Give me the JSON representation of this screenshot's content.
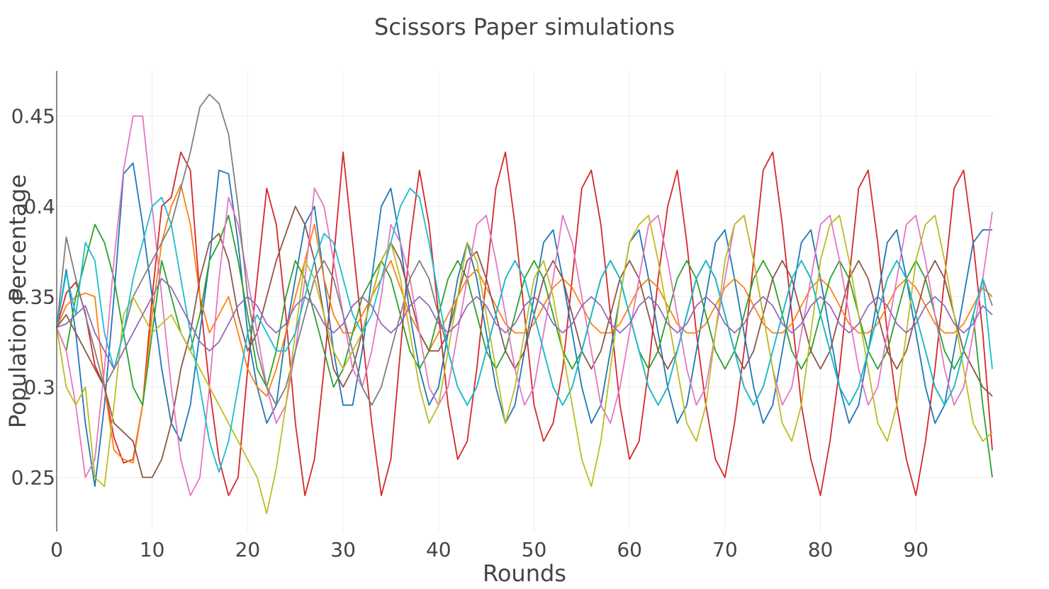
{
  "chart_data": {
    "type": "line",
    "title": "Scissors Paper simulations",
    "xlabel": "Rounds",
    "ylabel": "Population Percentage",
    "xlim": [
      0,
      98
    ],
    "ylim": [
      0.22,
      0.475
    ],
    "x_ticks": [
      0,
      10,
      20,
      30,
      40,
      50,
      60,
      70,
      80,
      90
    ],
    "y_ticks": [
      0.25,
      0.3,
      0.35,
      0.4,
      0.45
    ],
    "y_tick_labels": [
      "0.25",
      "0.3",
      "0.35",
      "0.4",
      "0.45"
    ],
    "grid": true,
    "legend": "none",
    "colors": [
      "#1f77b4",
      "#ff7f0e",
      "#2ca02c",
      "#d62728",
      "#8c564b",
      "#e377c2",
      "#7f7f7f",
      "#bcbd22",
      "#17becf",
      "#9467bd"
    ],
    "series_generation_note": null,
    "series": [
      {
        "color": "#d62728",
        "values": [
          0.333,
          0.352,
          0.358,
          0.341,
          0.312,
          0.3,
          0.272,
          0.258,
          0.26,
          0.29,
          0.35,
          0.4,
          0.405,
          0.43,
          0.42,
          0.35,
          0.3,
          0.26,
          0.24,
          0.25,
          0.31,
          0.36,
          0.41,
          0.39,
          0.34,
          0.28,
          0.24,
          0.26,
          0.31,
          0.37,
          0.43,
          0.38,
          0.33,
          0.28,
          0.24,
          0.26,
          0.32,
          0.38,
          0.42,
          0.39,
          0.34,
          0.29,
          0.26,
          0.27,
          0.31,
          0.36,
          0.41,
          0.43,
          0.39,
          0.34,
          0.29,
          0.27,
          0.28,
          0.31,
          0.36,
          0.41,
          0.42,
          0.39,
          0.34,
          0.29,
          0.26,
          0.27,
          0.31,
          0.36,
          0.4,
          0.42,
          0.38,
          0.33,
          0.29,
          0.26,
          0.25,
          0.28,
          0.32,
          0.37,
          0.42,
          0.43,
          0.39,
          0.34,
          0.29,
          0.26,
          0.24,
          0.27,
          0.31,
          0.36,
          0.41,
          0.42,
          0.38,
          0.33,
          0.29,
          0.26,
          0.24,
          0.27,
          0.31,
          0.36,
          0.41,
          0.42,
          0.38,
          0.33,
          0.265
        ]
      },
      {
        "color": "#1f77b4",
        "values": [
          0.333,
          0.365,
          0.33,
          0.28,
          0.245,
          0.29,
          0.35,
          0.418,
          0.424,
          0.39,
          0.35,
          0.31,
          0.28,
          0.27,
          0.29,
          0.33,
          0.37,
          0.42,
          0.418,
          0.38,
          0.33,
          0.3,
          0.28,
          0.29,
          0.33,
          0.36,
          0.39,
          0.4,
          0.36,
          0.32,
          0.29,
          0.29,
          0.32,
          0.36,
          0.4,
          0.41,
          0.38,
          0.34,
          0.31,
          0.29,
          0.3,
          0.33,
          0.36,
          0.38,
          0.36,
          0.33,
          0.3,
          0.28,
          0.29,
          0.32,
          0.35,
          0.38,
          0.387,
          0.36,
          0.33,
          0.3,
          0.28,
          0.29,
          0.32,
          0.35,
          0.38,
          0.387,
          0.36,
          0.33,
          0.3,
          0.28,
          0.29,
          0.32,
          0.35,
          0.38,
          0.387,
          0.36,
          0.33,
          0.3,
          0.28,
          0.29,
          0.32,
          0.35,
          0.38,
          0.387,
          0.36,
          0.33,
          0.3,
          0.28,
          0.29,
          0.32,
          0.35,
          0.38,
          0.387,
          0.36,
          0.33,
          0.3,
          0.28,
          0.29,
          0.32,
          0.35,
          0.38,
          0.387,
          0.387
        ]
      },
      {
        "color": "#ff7f0e",
        "values": [
          0.333,
          0.345,
          0.35,
          0.352,
          0.35,
          0.3,
          0.265,
          0.26,
          0.258,
          0.29,
          0.34,
          0.38,
          0.4,
          0.412,
          0.39,
          0.35,
          0.33,
          0.34,
          0.35,
          0.33,
          0.31,
          0.3,
          0.295,
          0.31,
          0.33,
          0.35,
          0.37,
          0.39,
          0.36,
          0.34,
          0.33,
          0.33,
          0.34,
          0.35,
          0.36,
          0.37,
          0.355,
          0.34,
          0.33,
          0.32,
          0.33,
          0.34,
          0.35,
          0.36,
          0.365,
          0.355,
          0.345,
          0.335,
          0.33,
          0.33,
          0.335,
          0.345,
          0.355,
          0.36,
          0.355,
          0.345,
          0.335,
          0.33,
          0.33,
          0.335,
          0.345,
          0.355,
          0.36,
          0.355,
          0.345,
          0.335,
          0.33,
          0.33,
          0.335,
          0.345,
          0.355,
          0.36,
          0.355,
          0.345,
          0.335,
          0.33,
          0.33,
          0.335,
          0.345,
          0.355,
          0.36,
          0.355,
          0.345,
          0.335,
          0.33,
          0.33,
          0.335,
          0.345,
          0.355,
          0.36,
          0.355,
          0.345,
          0.335,
          0.33,
          0.33,
          0.335,
          0.345,
          0.355,
          0.35
        ]
      },
      {
        "color": "#2ca02c",
        "values": [
          0.333,
          0.32,
          0.35,
          0.37,
          0.39,
          0.38,
          0.36,
          0.33,
          0.3,
          0.29,
          0.33,
          0.37,
          0.35,
          0.33,
          0.32,
          0.34,
          0.37,
          0.38,
          0.395,
          0.37,
          0.34,
          0.31,
          0.3,
          0.32,
          0.35,
          0.37,
          0.36,
          0.34,
          0.32,
          0.3,
          0.31,
          0.33,
          0.35,
          0.36,
          0.37,
          0.36,
          0.34,
          0.32,
          0.31,
          0.32,
          0.34,
          0.36,
          0.37,
          0.36,
          0.34,
          0.32,
          0.31,
          0.32,
          0.34,
          0.36,
          0.37,
          0.36,
          0.34,
          0.32,
          0.31,
          0.32,
          0.34,
          0.36,
          0.37,
          0.36,
          0.34,
          0.32,
          0.31,
          0.32,
          0.34,
          0.36,
          0.37,
          0.36,
          0.34,
          0.32,
          0.31,
          0.32,
          0.34,
          0.36,
          0.37,
          0.36,
          0.34,
          0.32,
          0.31,
          0.32,
          0.34,
          0.36,
          0.37,
          0.36,
          0.34,
          0.32,
          0.31,
          0.32,
          0.34,
          0.36,
          0.37,
          0.36,
          0.34,
          0.32,
          0.31,
          0.32,
          0.34,
          0.29,
          0.25
        ]
      },
      {
        "color": "#8c564b",
        "values": [
          0.333,
          0.34,
          0.33,
          0.32,
          0.31,
          0.3,
          0.28,
          0.275,
          0.27,
          0.25,
          0.25,
          0.26,
          0.28,
          0.31,
          0.33,
          0.36,
          0.38,
          0.385,
          0.37,
          0.34,
          0.32,
          0.33,
          0.35,
          0.37,
          0.385,
          0.4,
          0.39,
          0.37,
          0.34,
          0.31,
          0.3,
          0.31,
          0.33,
          0.35,
          0.37,
          0.38,
          0.37,
          0.35,
          0.33,
          0.32,
          0.32,
          0.33,
          0.35,
          0.37,
          0.375,
          0.36,
          0.34,
          0.32,
          0.31,
          0.32,
          0.34,
          0.36,
          0.37,
          0.36,
          0.34,
          0.32,
          0.31,
          0.32,
          0.34,
          0.36,
          0.37,
          0.36,
          0.34,
          0.32,
          0.31,
          0.32,
          0.34,
          0.36,
          0.37,
          0.36,
          0.34,
          0.32,
          0.31,
          0.32,
          0.34,
          0.36,
          0.37,
          0.36,
          0.34,
          0.32,
          0.31,
          0.32,
          0.34,
          0.36,
          0.37,
          0.36,
          0.34,
          0.32,
          0.31,
          0.32,
          0.34,
          0.36,
          0.37,
          0.36,
          0.34,
          0.32,
          0.31,
          0.3,
          0.295
        ]
      },
      {
        "color": "#e377c2",
        "values": [
          0.333,
          0.32,
          0.29,
          0.25,
          0.26,
          0.31,
          0.37,
          0.42,
          0.45,
          0.45,
          0.4,
          0.35,
          0.3,
          0.26,
          0.24,
          0.25,
          0.3,
          0.36,
          0.405,
          0.39,
          0.36,
          0.33,
          0.3,
          0.28,
          0.29,
          0.32,
          0.36,
          0.41,
          0.4,
          0.37,
          0.34,
          0.31,
          0.3,
          0.32,
          0.35,
          0.39,
          0.38,
          0.36,
          0.33,
          0.3,
          0.29,
          0.3,
          0.33,
          0.36,
          0.39,
          0.395,
          0.37,
          0.34,
          0.31,
          0.29,
          0.3,
          0.33,
          0.36,
          0.395,
          0.38,
          0.35,
          0.32,
          0.29,
          0.28,
          0.3,
          0.33,
          0.36,
          0.39,
          0.395,
          0.37,
          0.34,
          0.31,
          0.29,
          0.3,
          0.33,
          0.36,
          0.39,
          0.395,
          0.37,
          0.34,
          0.31,
          0.29,
          0.3,
          0.33,
          0.36,
          0.39,
          0.395,
          0.37,
          0.34,
          0.31,
          0.29,
          0.3,
          0.33,
          0.36,
          0.39,
          0.395,
          0.37,
          0.34,
          0.31,
          0.29,
          0.3,
          0.33,
          0.36,
          0.397
        ]
      },
      {
        "color": "#7f7f7f",
        "values": [
          0.333,
          0.383,
          0.36,
          0.34,
          0.32,
          0.3,
          0.31,
          0.33,
          0.35,
          0.36,
          0.37,
          0.38,
          0.39,
          0.41,
          0.43,
          0.455,
          0.462,
          0.457,
          0.44,
          0.4,
          0.35,
          0.32,
          0.3,
          0.29,
          0.3,
          0.32,
          0.34,
          0.36,
          0.37,
          0.36,
          0.34,
          0.32,
          0.3,
          0.29,
          0.3,
          0.32,
          0.34,
          0.36,
          0.37,
          0.36,
          0.34,
          0.32,
          0.3,
          0.29,
          0.3,
          0.32,
          0.34,
          0.36,
          0.37,
          0.36,
          0.34,
          0.32,
          0.3,
          0.29,
          0.3,
          0.32,
          0.34,
          0.36,
          0.37,
          0.36,
          0.34,
          0.32,
          0.3,
          0.29,
          0.3,
          0.32,
          0.34,
          0.36,
          0.37,
          0.36,
          0.34,
          0.32,
          0.3,
          0.29,
          0.3,
          0.32,
          0.34,
          0.36,
          0.37,
          0.36,
          0.34,
          0.32,
          0.3,
          0.29,
          0.3,
          0.32,
          0.34,
          0.36,
          0.37,
          0.36,
          0.34,
          0.32,
          0.3,
          0.29,
          0.3,
          0.32,
          0.34,
          0.36,
          0.345
        ]
      },
      {
        "color": "#bcbd22",
        "values": [
          0.333,
          0.3,
          0.29,
          0.3,
          0.25,
          0.245,
          0.29,
          0.34,
          0.35,
          0.34,
          0.33,
          0.335,
          0.34,
          0.33,
          0.32,
          0.31,
          0.3,
          0.29,
          0.28,
          0.27,
          0.26,
          0.25,
          0.23,
          0.255,
          0.29,
          0.33,
          0.37,
          0.36,
          0.34,
          0.32,
          0.31,
          0.32,
          0.33,
          0.35,
          0.37,
          0.38,
          0.36,
          0.33,
          0.3,
          0.28,
          0.29,
          0.32,
          0.35,
          0.38,
          0.37,
          0.34,
          0.31,
          0.28,
          0.3,
          0.33,
          0.36,
          0.37,
          0.35,
          0.32,
          0.29,
          0.26,
          0.245,
          0.27,
          0.31,
          0.35,
          0.38,
          0.39,
          0.395,
          0.37,
          0.34,
          0.31,
          0.28,
          0.27,
          0.29,
          0.33,
          0.37,
          0.39,
          0.395,
          0.37,
          0.34,
          0.31,
          0.28,
          0.27,
          0.29,
          0.33,
          0.37,
          0.39,
          0.395,
          0.37,
          0.34,
          0.31,
          0.28,
          0.27,
          0.29,
          0.33,
          0.37,
          0.39,
          0.395,
          0.37,
          0.34,
          0.31,
          0.28,
          0.27,
          0.275
        ]
      },
      {
        "color": "#17becf",
        "values": [
          0.333,
          0.363,
          0.34,
          0.38,
          0.37,
          0.33,
          0.31,
          0.33,
          0.36,
          0.38,
          0.4,
          0.405,
          0.39,
          0.36,
          0.33,
          0.3,
          0.27,
          0.253,
          0.27,
          0.3,
          0.33,
          0.34,
          0.33,
          0.32,
          0.32,
          0.33,
          0.35,
          0.37,
          0.385,
          0.38,
          0.36,
          0.34,
          0.33,
          0.34,
          0.36,
          0.38,
          0.4,
          0.41,
          0.405,
          0.38,
          0.35,
          0.32,
          0.3,
          0.29,
          0.3,
          0.32,
          0.34,
          0.36,
          0.37,
          0.36,
          0.34,
          0.32,
          0.3,
          0.29,
          0.3,
          0.32,
          0.34,
          0.36,
          0.37,
          0.36,
          0.34,
          0.32,
          0.3,
          0.29,
          0.3,
          0.32,
          0.34,
          0.36,
          0.37,
          0.36,
          0.34,
          0.32,
          0.3,
          0.29,
          0.3,
          0.32,
          0.34,
          0.36,
          0.37,
          0.36,
          0.34,
          0.32,
          0.3,
          0.29,
          0.3,
          0.32,
          0.34,
          0.36,
          0.37,
          0.36,
          0.34,
          0.32,
          0.3,
          0.29,
          0.3,
          0.32,
          0.34,
          0.36,
          0.31
        ]
      },
      {
        "color": "#9467bd",
        "values": [
          0.333,
          0.335,
          0.34,
          0.345,
          0.33,
          0.32,
          0.31,
          0.32,
          0.33,
          0.34,
          0.35,
          0.36,
          0.355,
          0.345,
          0.335,
          0.325,
          0.32,
          0.325,
          0.335,
          0.345,
          0.35,
          0.345,
          0.335,
          0.33,
          0.335,
          0.345,
          0.35,
          0.345,
          0.335,
          0.33,
          0.335,
          0.345,
          0.35,
          0.345,
          0.335,
          0.33,
          0.335,
          0.345,
          0.35,
          0.345,
          0.335,
          0.33,
          0.335,
          0.345,
          0.35,
          0.345,
          0.335,
          0.33,
          0.335,
          0.345,
          0.35,
          0.345,
          0.335,
          0.33,
          0.335,
          0.345,
          0.35,
          0.345,
          0.335,
          0.33,
          0.335,
          0.345,
          0.35,
          0.345,
          0.335,
          0.33,
          0.335,
          0.345,
          0.35,
          0.345,
          0.335,
          0.33,
          0.335,
          0.345,
          0.35,
          0.345,
          0.335,
          0.33,
          0.335,
          0.345,
          0.35,
          0.345,
          0.335,
          0.33,
          0.335,
          0.345,
          0.35,
          0.345,
          0.335,
          0.33,
          0.335,
          0.345,
          0.35,
          0.345,
          0.335,
          0.33,
          0.335,
          0.345,
          0.34
        ]
      }
    ]
  }
}
